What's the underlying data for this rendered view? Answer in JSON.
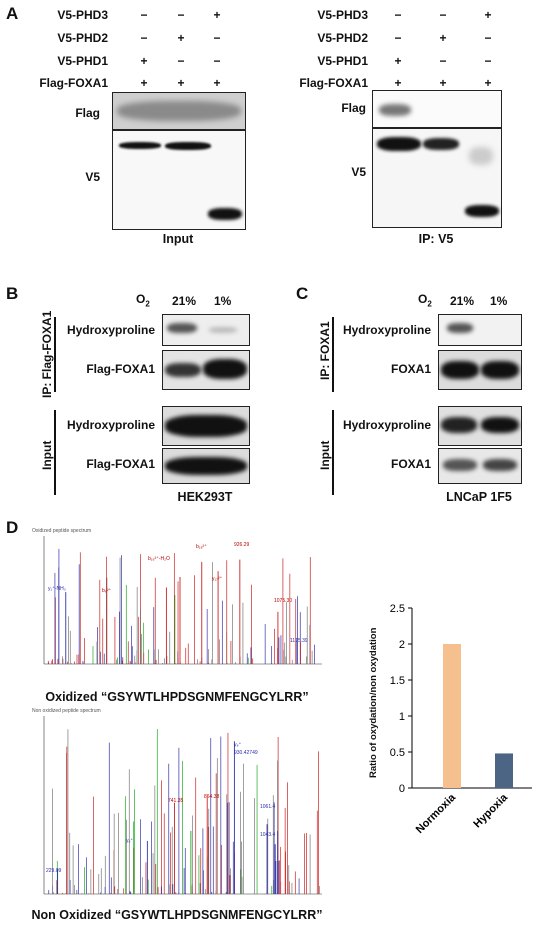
{
  "panelA": {
    "label": "A",
    "left": {
      "rows": [
        {
          "label": "V5-PHD3",
          "signs": [
            "−",
            "−",
            "+"
          ]
        },
        {
          "label": "V5-PHD2",
          "signs": [
            "−",
            "+",
            "−"
          ]
        },
        {
          "label": "V5-PHD1",
          "signs": [
            "+",
            "−",
            "−"
          ]
        },
        {
          "label": "Flag-FOXA1",
          "signs": [
            "+",
            "+",
            "+"
          ]
        }
      ],
      "blot_labels": [
        "Flag",
        "V5"
      ],
      "caption": "Input"
    },
    "right": {
      "rows": [
        {
          "label": "V5-PHD3",
          "signs": [
            "−",
            "−",
            "+"
          ]
        },
        {
          "label": "V5-PHD2",
          "signs": [
            "−",
            "+",
            "−"
          ]
        },
        {
          "label": "V5-PHD1",
          "signs": [
            "+",
            "−",
            "−"
          ]
        },
        {
          "label": "Flag-FOXA1",
          "signs": [
            "+",
            "+",
            "+"
          ]
        }
      ],
      "blot_labels": [
        "Flag",
        "V5"
      ],
      "caption": "IP: V5"
    }
  },
  "panelB": {
    "label": "B",
    "o2_label": "O",
    "o2_sub": "2",
    "conditions": [
      "21%",
      "1%"
    ],
    "group_ip": "IP: Flag-FOXA1",
    "group_input": "Input",
    "blot_labels": [
      "Hydroxyproline",
      "Flag-FOXA1",
      "Hydroxyproline",
      "Flag-FOXA1"
    ],
    "caption": "HEK293T"
  },
  "panelC": {
    "label": "C",
    "o2_label": "O",
    "o2_sub": "2",
    "conditions": [
      "21%",
      "1%"
    ],
    "group_ip": "IP: FOXA1",
    "group_input": "Input",
    "blot_labels": [
      "Hydroxyproline",
      "FOXA1",
      "Hydroxyproline",
      "FOXA1"
    ],
    "caption": "LNCaP 1F5"
  },
  "panelD": {
    "label": "D",
    "spectrum1_caption": "Oxidized “GSYWTLHPDSGNMFENGCYLRR”",
    "spectrum2_caption": "Non Oxidized “GSYWTLHPDSGNMFENGCYLRR”",
    "spectrum1_peaks": [
      "y₁⁺-NH₃",
      "b₈²⁺",
      "b₁₆²⁺-H₂O",
      "b₁₈²⁺",
      "926.29",
      "y₁₇²⁺",
      "1075.30",
      "1175.39"
    ],
    "spectrum2_peaks": [
      "y₈⁺",
      "930.42749",
      "864.38",
      "741.35",
      "1061.4",
      "1043.4",
      "y₆⁺",
      "229.09"
    ]
  },
  "chart_data": {
    "type": "bar",
    "categories": [
      "Normoxia",
      "Hypoxia"
    ],
    "values": [
      2.0,
      0.48
    ],
    "colors": [
      "#f5c08e",
      "#4d6585"
    ],
    "ylabel": "Ratio of oxydation/non oxydation",
    "ylim": [
      0,
      2.5
    ],
    "yticks": [
      "0",
      "0.5",
      "1",
      "1.5",
      "2",
      "2.5"
    ],
    "grid": false
  }
}
